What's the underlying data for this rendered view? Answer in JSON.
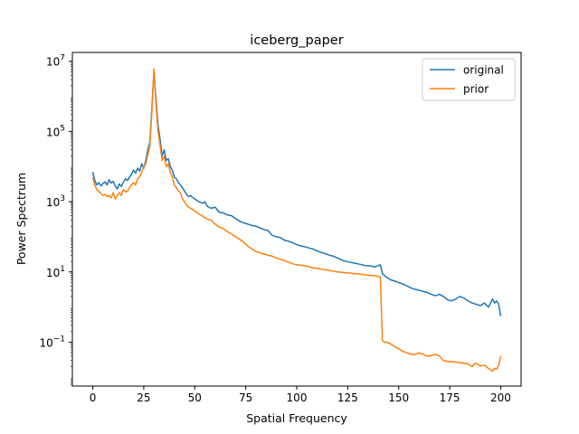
{
  "chart_data": {
    "type": "line",
    "title": "iceberg_paper",
    "xlabel": "Spatial Frequency",
    "ylabel": "Power Spectrum",
    "xlim": [
      -10,
      210
    ],
    "ylim_log10": [
      -2.25,
      7.25
    ],
    "yscale": "log",
    "grid": false,
    "legend_position": "top-right",
    "x_ticks": [
      0,
      25,
      50,
      75,
      100,
      125,
      150,
      175,
      200
    ],
    "y_ticks": [
      {
        "base": "10",
        "exp": "7",
        "value": 10000000
      },
      {
        "base": "10",
        "exp": "5",
        "value": 100000
      },
      {
        "base": "10",
        "exp": "3",
        "value": 1000
      },
      {
        "base": "10",
        "exp": "1",
        "value": 10
      },
      {
        "base": "10",
        "exp": "−1",
        "value": 0.1
      }
    ],
    "series": [
      {
        "name": "original",
        "color": "#1f77b4",
        "points": [
          [
            0,
            7000
          ],
          [
            1,
            4000
          ],
          [
            2,
            3000
          ],
          [
            3,
            3500
          ],
          [
            4,
            2800
          ],
          [
            5,
            3300
          ],
          [
            6,
            3700
          ],
          [
            7,
            3000
          ],
          [
            8,
            4200
          ],
          [
            9,
            3400
          ],
          [
            10,
            3800
          ],
          [
            11,
            2800
          ],
          [
            12,
            2300
          ],
          [
            13,
            3200
          ],
          [
            14,
            2700
          ],
          [
            15,
            3600
          ],
          [
            16,
            4500
          ],
          [
            17,
            4000
          ],
          [
            18,
            5000
          ],
          [
            19,
            6000
          ],
          [
            20,
            8000
          ],
          [
            21,
            6500
          ],
          [
            22,
            9000
          ],
          [
            23,
            7500
          ],
          [
            24,
            12000
          ],
          [
            25,
            9000
          ],
          [
            26,
            15000
          ],
          [
            27,
            30000
          ],
          [
            28,
            50000
          ],
          [
            29,
            500000
          ],
          [
            30,
            5000000
          ],
          [
            31,
            800000
          ],
          [
            32,
            150000
          ],
          [
            33,
            60000
          ],
          [
            34,
            20000
          ],
          [
            35,
            30000
          ],
          [
            36,
            15000
          ],
          [
            37,
            17000
          ],
          [
            38,
            10000
          ],
          [
            39,
            8000
          ],
          [
            40,
            5000
          ],
          [
            41,
            4500
          ],
          [
            42,
            3500
          ],
          [
            43,
            3000
          ],
          [
            44,
            2500
          ],
          [
            45,
            2000
          ],
          [
            46,
            1600
          ],
          [
            47,
            1400
          ],
          [
            48,
            1500
          ],
          [
            49,
            1300
          ],
          [
            50,
            1200
          ],
          [
            52,
            1000
          ],
          [
            54,
            900
          ],
          [
            55,
            1000
          ],
          [
            56,
            750
          ],
          [
            58,
            650
          ],
          [
            60,
            700
          ],
          [
            62,
            500
          ],
          [
            64,
            480
          ],
          [
            66,
            420
          ],
          [
            68,
            400
          ],
          [
            70,
            330
          ],
          [
            72,
            280
          ],
          [
            74,
            250
          ],
          [
            76,
            230
          ],
          [
            78,
            210
          ],
          [
            80,
            200
          ],
          [
            82,
            180
          ],
          [
            84,
            160
          ],
          [
            86,
            150
          ],
          [
            88,
            110
          ],
          [
            90,
            100
          ],
          [
            92,
            95
          ],
          [
            94,
            80
          ],
          [
            96,
            75
          ],
          [
            98,
            68
          ],
          [
            100,
            60
          ],
          [
            102,
            55
          ],
          [
            104,
            52
          ],
          [
            106,
            48
          ],
          [
            108,
            45
          ],
          [
            110,
            40
          ],
          [
            112,
            36
          ],
          [
            114,
            33
          ],
          [
            116,
            30
          ],
          [
            118,
            28
          ],
          [
            120,
            25
          ],
          [
            122,
            22
          ],
          [
            124,
            20
          ],
          [
            126,
            19
          ],
          [
            128,
            18
          ],
          [
            130,
            17
          ],
          [
            132,
            16
          ],
          [
            134,
            15
          ],
          [
            136,
            15
          ],
          [
            138,
            14
          ],
          [
            140,
            15
          ],
          [
            141,
            16
          ],
          [
            142,
            9
          ],
          [
            144,
            7
          ],
          [
            146,
            6
          ],
          [
            148,
            5.5
          ],
          [
            150,
            5
          ],
          [
            152,
            4.5
          ],
          [
            154,
            4
          ],
          [
            156,
            3.5
          ],
          [
            158,
            3.2
          ],
          [
            160,
            3
          ],
          [
            162,
            2.8
          ],
          [
            164,
            2.6
          ],
          [
            166,
            2.3
          ],
          [
            168,
            2.1
          ],
          [
            170,
            2.3
          ],
          [
            172,
            2
          ],
          [
            174,
            1.6
          ],
          [
            176,
            1.5
          ],
          [
            178,
            1.7
          ],
          [
            180,
            2
          ],
          [
            182,
            1.8
          ],
          [
            184,
            1.5
          ],
          [
            186,
            1.3
          ],
          [
            188,
            1.2
          ],
          [
            190,
            1.1
          ],
          [
            192,
            1.3
          ],
          [
            194,
            1.0
          ],
          [
            196,
            1.7
          ],
          [
            197,
            1.3
          ],
          [
            198,
            1.5
          ],
          [
            199,
            1.2
          ],
          [
            200,
            0.55
          ]
        ]
      },
      {
        "name": "prior",
        "color": "#ff7f0e",
        "points": [
          [
            0,
            5000
          ],
          [
            1,
            3000
          ],
          [
            2,
            2200
          ],
          [
            3,
            2000
          ],
          [
            4,
            1700
          ],
          [
            5,
            1500
          ],
          [
            6,
            1600
          ],
          [
            7,
            1400
          ],
          [
            8,
            1500
          ],
          [
            9,
            1300
          ],
          [
            10,
            1800
          ],
          [
            11,
            1200
          ],
          [
            12,
            1500
          ],
          [
            13,
            1800
          ],
          [
            14,
            1500
          ],
          [
            15,
            2200
          ],
          [
            16,
            1900
          ],
          [
            17,
            2000
          ],
          [
            18,
            2500
          ],
          [
            19,
            3000
          ],
          [
            20,
            3500
          ],
          [
            21,
            3000
          ],
          [
            22,
            4500
          ],
          [
            23,
            5000
          ],
          [
            24,
            7000
          ],
          [
            25,
            10000
          ],
          [
            26,
            12000
          ],
          [
            27,
            22000
          ],
          [
            28,
            40000
          ],
          [
            29,
            400000
          ],
          [
            30,
            6000000
          ],
          [
            31,
            600000
          ],
          [
            32,
            100000
          ],
          [
            33,
            40000
          ],
          [
            34,
            15000
          ],
          [
            35,
            20000
          ],
          [
            36,
            10000
          ],
          [
            37,
            12000
          ],
          [
            38,
            7000
          ],
          [
            39,
            5000
          ],
          [
            40,
            3000
          ],
          [
            41,
            2500
          ],
          [
            42,
            2000
          ],
          [
            43,
            1800
          ],
          [
            44,
            1200
          ],
          [
            45,
            1000
          ],
          [
            46,
            800
          ],
          [
            47,
            700
          ],
          [
            48,
            650
          ],
          [
            49,
            600
          ],
          [
            50,
            550
          ],
          [
            52,
            450
          ],
          [
            54,
            380
          ],
          [
            56,
            320
          ],
          [
            58,
            300
          ],
          [
            60,
            230
          ],
          [
            62,
            190
          ],
          [
            64,
            170
          ],
          [
            66,
            140
          ],
          [
            68,
            120
          ],
          [
            70,
            100
          ],
          [
            72,
            85
          ],
          [
            74,
            70
          ],
          [
            76,
            55
          ],
          [
            78,
            45
          ],
          [
            80,
            38
          ],
          [
            82,
            35
          ],
          [
            84,
            32
          ],
          [
            86,
            30
          ],
          [
            88,
            28
          ],
          [
            90,
            25
          ],
          [
            92,
            23
          ],
          [
            94,
            21
          ],
          [
            96,
            19
          ],
          [
            98,
            17
          ],
          [
            100,
            16
          ],
          [
            102,
            15.5
          ],
          [
            104,
            15
          ],
          [
            106,
            14
          ],
          [
            108,
            13
          ],
          [
            110,
            12.5
          ],
          [
            112,
            12
          ],
          [
            114,
            11.5
          ],
          [
            116,
            11
          ],
          [
            118,
            10.5
          ],
          [
            120,
            10
          ],
          [
            122,
            9.8
          ],
          [
            124,
            9.5
          ],
          [
            126,
            9.3
          ],
          [
            128,
            9
          ],
          [
            130,
            8.8
          ],
          [
            132,
            8.5
          ],
          [
            134,
            8.2
          ],
          [
            136,
            8
          ],
          [
            138,
            7.8
          ],
          [
            140,
            7.5
          ],
          [
            141,
            7.2
          ],
          [
            142,
            0.11
          ],
          [
            143,
            0.1
          ],
          [
            144,
            0.1
          ],
          [
            146,
            0.09
          ],
          [
            148,
            0.075
          ],
          [
            150,
            0.065
          ],
          [
            152,
            0.055
          ],
          [
            154,
            0.05
          ],
          [
            156,
            0.045
          ],
          [
            158,
            0.045
          ],
          [
            160,
            0.05
          ],
          [
            162,
            0.045
          ],
          [
            164,
            0.04
          ],
          [
            166,
            0.042
          ],
          [
            168,
            0.045
          ],
          [
            170,
            0.04
          ],
          [
            172,
            0.03
          ],
          [
            174,
            0.028
          ],
          [
            176,
            0.028
          ],
          [
            178,
            0.027
          ],
          [
            180,
            0.026
          ],
          [
            182,
            0.025
          ],
          [
            184,
            0.024
          ],
          [
            186,
            0.02
          ],
          [
            187,
            0.024
          ],
          [
            188,
            0.025
          ],
          [
            190,
            0.021
          ],
          [
            192,
            0.022
          ],
          [
            194,
            0.018
          ],
          [
            196,
            0.015
          ],
          [
            197,
            0.018
          ],
          [
            198,
            0.017
          ],
          [
            199,
            0.022
          ],
          [
            200,
            0.04
          ]
        ]
      }
    ]
  }
}
